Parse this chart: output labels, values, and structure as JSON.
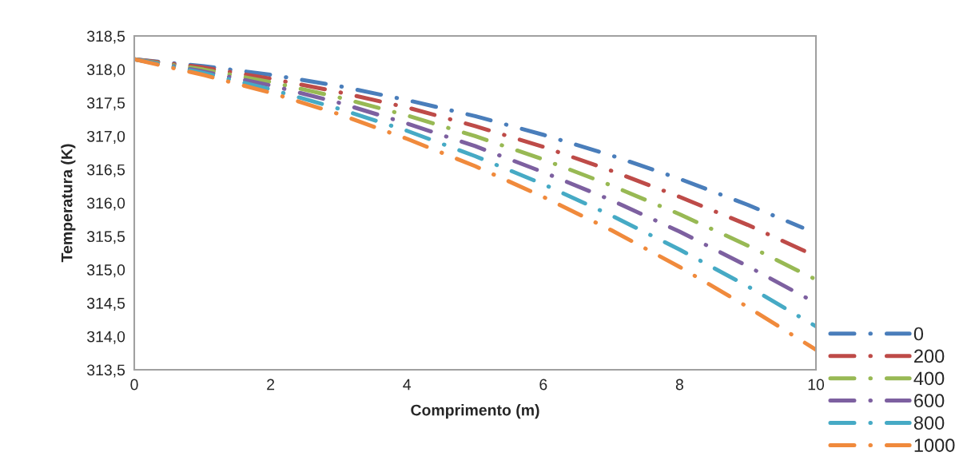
{
  "chart_data": {
    "type": "line",
    "xlabel": "Comprimento (m)",
    "ylabel": "Temperatura (K)",
    "x": [
      0,
      1,
      2,
      3,
      4,
      5,
      6,
      7,
      8,
      9,
      10
    ],
    "xlim": [
      0,
      10
    ],
    "xticks": [
      0,
      2,
      4,
      6,
      8,
      10
    ],
    "ylim": [
      313.5,
      318.5
    ],
    "yticks": [
      {
        "value": 313.5,
        "label": "313,5"
      },
      {
        "value": 314.0,
        "label": "314,0"
      },
      {
        "value": 314.5,
        "label": "314,5"
      },
      {
        "value": 315.0,
        "label": "315,0"
      },
      {
        "value": 315.5,
        "label": "315,5"
      },
      {
        "value": 316.0,
        "label": "316,0"
      },
      {
        "value": 316.5,
        "label": "316,5"
      },
      {
        "value": 317.0,
        "label": "317,0"
      },
      {
        "value": 317.5,
        "label": "317,5"
      },
      {
        "value": 318.0,
        "label": "318,0"
      },
      {
        "value": 318.5,
        "label": "318,5"
      }
    ],
    "grid": false,
    "legend": "bottom right",
    "line_style": "dashed",
    "marker": "none",
    "series": [
      {
        "name": "0",
        "color": "#4a7ebb",
        "x": [
          0,
          1,
          2,
          3,
          4,
          5,
          6,
          7,
          8,
          9,
          9.8
        ],
        "values": [
          318.15,
          318.05,
          317.92,
          317.75,
          317.54,
          317.3,
          317.02,
          316.71,
          316.36,
          315.97,
          315.63
        ]
      },
      {
        "name": "200",
        "color": "#be4b48",
        "values": [
          318.15,
          318.03,
          317.86,
          317.66,
          317.43,
          317.15,
          316.84,
          316.48,
          316.09,
          315.67,
          315.2
        ]
      },
      {
        "name": "400",
        "color": "#98b954",
        "values": [
          318.15,
          318.0,
          317.81,
          317.58,
          317.31,
          317.0,
          316.65,
          316.26,
          315.83,
          315.36,
          314.85
        ]
      },
      {
        "name": "600",
        "color": "#7d60a0",
        "values": [
          318.15,
          317.97,
          317.76,
          317.5,
          317.19,
          316.85,
          316.46,
          316.04,
          315.57,
          315.05,
          314.5
        ]
      },
      {
        "name": "800",
        "color": "#46aac5",
        "values": [
          318.15,
          317.95,
          317.7,
          317.41,
          317.08,
          316.7,
          316.28,
          315.81,
          315.3,
          314.75,
          314.15
        ]
      },
      {
        "name": "1000",
        "color": "#f08a3c",
        "values": [
          318.15,
          317.92,
          317.65,
          317.33,
          316.96,
          316.55,
          316.09,
          315.59,
          315.04,
          314.44,
          313.8
        ]
      }
    ]
  }
}
